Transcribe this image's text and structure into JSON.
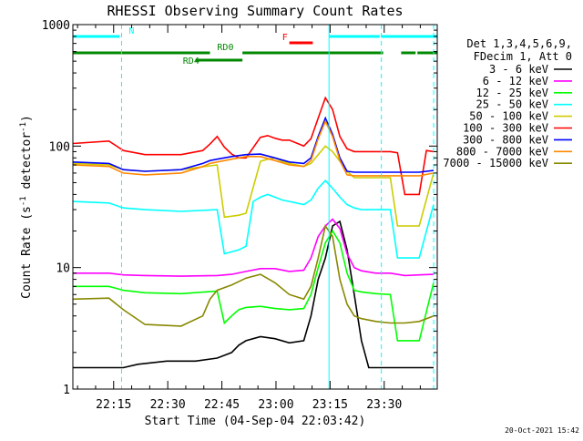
{
  "chart_data": {
    "type": "line",
    "title": "RHESSI Observing Summary Count Rates",
    "xlabel": "Start Time (04-Sep-04 22:03:42)",
    "ylabel_main": "Count Rate (s",
    "ylabel_sup1": "-1",
    "ylabel_mid": " detector",
    "ylabel_sup2": "-1",
    "ylabel_end": ")",
    "yscale": "log",
    "ylim": [
      1,
      1000
    ],
    "xlim_minutes": [
      0,
      101
    ],
    "x_ticks": [
      {
        "m": 11.3,
        "label": "22:15"
      },
      {
        "m": 26.3,
        "label": "22:30"
      },
      {
        "m": 41.3,
        "label": "22:45"
      },
      {
        "m": 56.3,
        "label": "23:00"
      },
      {
        "m": 71.3,
        "label": "23:15"
      },
      {
        "m": 86.3,
        "label": "23:30"
      }
    ],
    "y_ticks": [
      {
        "v": 1,
        "label": "1"
      },
      {
        "v": 10,
        "label": "10"
      },
      {
        "v": 100,
        "label": "100"
      },
      {
        "v": 1000,
        "label": "1000"
      }
    ],
    "legend_header": [
      "Det 1,3,4,5,6,9,",
      "FDecim 1, Att 0"
    ],
    "series": [
      {
        "name": "3 - 6 keV",
        "color": "#000000",
        "x": [
          0,
          10,
          14,
          18,
          26,
          34,
          40,
          44,
          46,
          48,
          52,
          56,
          60,
          64,
          66,
          68,
          70,
          72,
          74,
          76,
          78,
          80,
          82,
          84,
          86,
          88,
          92,
          96,
          100
        ],
        "y": [
          1.5,
          1.5,
          1.5,
          1.6,
          1.7,
          1.7,
          1.8,
          2.0,
          2.3,
          2.5,
          2.7,
          2.6,
          2.4,
          2.5,
          4,
          8,
          12,
          22,
          24,
          14,
          6,
          2.5,
          1.5,
          1.5,
          1.5,
          1.5,
          1.5,
          1.5,
          1.5
        ]
      },
      {
        "name": "6 - 12 keV",
        "color": "#ff00ff",
        "x": [
          0,
          10,
          14,
          20,
          30,
          40,
          44,
          48,
          52,
          56,
          60,
          64,
          66,
          68,
          70,
          72,
          74,
          76,
          78,
          80,
          84,
          88,
          92,
          96,
          100
        ],
        "y": [
          9,
          9,
          8.7,
          8.6,
          8.5,
          8.6,
          8.8,
          9.3,
          9.8,
          9.8,
          9.3,
          9.5,
          12,
          18,
          22,
          25,
          21,
          13,
          10,
          9.4,
          9,
          9,
          8.6,
          8.7,
          8.8
        ]
      },
      {
        "name": "12 - 25 keV",
        "color": "#00ff00",
        "x": [
          0,
          10,
          14,
          20,
          30,
          40,
          42,
          44,
          46,
          48,
          52,
          56,
          60,
          64,
          66,
          68,
          70,
          72,
          74,
          76,
          78,
          80,
          84,
          88,
          90,
          92,
          96,
          100
        ],
        "y": [
          7,
          7,
          6.5,
          6.2,
          6.1,
          6.4,
          3.5,
          4.0,
          4.5,
          4.7,
          4.8,
          4.6,
          4.5,
          4.6,
          6,
          10,
          16,
          20,
          16,
          9,
          6.5,
          6.3,
          6.1,
          6.0,
          2.5,
          2.5,
          2.5,
          7.5
        ]
      },
      {
        "name": "25 - 50 keV",
        "color": "#00ffff",
        "x": [
          0,
          10,
          14,
          20,
          30,
          40,
          42,
          46,
          48,
          50,
          52,
          54,
          56,
          58,
          60,
          62,
          64,
          66,
          68,
          70,
          72,
          74,
          76,
          78,
          80,
          84,
          88,
          90,
          92,
          96,
          100
        ],
        "y": [
          35,
          34,
          31,
          30,
          29,
          30,
          13,
          14,
          15,
          35,
          38,
          40,
          38,
          36,
          35,
          34,
          33,
          36,
          45,
          52,
          45,
          38,
          33,
          31,
          30,
          30,
          30,
          12,
          12,
          12,
          33
        ]
      },
      {
        "name": "50 - 100 keV",
        "color": "#cccc00",
        "x": [
          0,
          10,
          14,
          20,
          30,
          40,
          42,
          46,
          48,
          52,
          54,
          56,
          58,
          60,
          62,
          64,
          66,
          68,
          70,
          72,
          74,
          76,
          78,
          80,
          84,
          88,
          90,
          92,
          96,
          100
        ],
        "y": [
          72,
          70,
          64,
          62,
          64,
          70,
          26,
          27,
          28,
          75,
          78,
          80,
          75,
          72,
          70,
          68,
          72,
          85,
          100,
          90,
          75,
          62,
          55,
          55,
          55,
          55,
          22,
          22,
          22,
          60
        ]
      },
      {
        "name": "100 - 300 keV",
        "color": "#ff0000",
        "x": [
          0,
          10,
          14,
          20,
          30,
          36,
          38,
          40,
          42,
          44,
          46,
          48,
          52,
          54,
          56,
          58,
          60,
          62,
          64,
          66,
          68,
          70,
          72,
          74,
          76,
          78,
          80,
          84,
          88,
          90,
          92,
          96,
          98,
          100
        ],
        "y": [
          105,
          110,
          92,
          85,
          85,
          92,
          104,
          120,
          98,
          86,
          80,
          80,
          118,
          122,
          116,
          112,
          112,
          106,
          100,
          115,
          170,
          250,
          200,
          120,
          95,
          90,
          90,
          90,
          90,
          88,
          40,
          40,
          92,
          90
        ]
      },
      {
        "name": "300 - 800 keV",
        "color": "#0000ff",
        "x": [
          0,
          10,
          14,
          20,
          30,
          36,
          38,
          40,
          44,
          48,
          52,
          56,
          60,
          64,
          66,
          68,
          70,
          72,
          74,
          76,
          78,
          80,
          84,
          88,
          92,
          96,
          100
        ],
        "y": [
          74,
          72,
          64,
          62,
          64,
          72,
          76,
          78,
          82,
          85,
          86,
          80,
          74,
          72,
          80,
          120,
          170,
          125,
          80,
          62,
          61,
          61,
          61,
          61,
          61,
          61,
          63
        ]
      },
      {
        "name": "800 - 7000 keV",
        "color": "#ff8800",
        "x": [
          0,
          10,
          14,
          20,
          30,
          36,
          38,
          40,
          44,
          48,
          52,
          56,
          60,
          64,
          66,
          68,
          70,
          72,
          74,
          76,
          78,
          80,
          84,
          88,
          92,
          96,
          100
        ],
        "y": [
          70,
          68,
          60,
          58,
          60,
          68,
          72,
          74,
          78,
          82,
          82,
          76,
          70,
          68,
          76,
          115,
          160,
          120,
          76,
          58,
          57,
          57,
          57,
          57,
          57,
          57,
          60
        ]
      },
      {
        "name": "7000 - 15000 keV",
        "color": "#888800",
        "x": [
          0,
          10,
          14,
          20,
          30,
          36,
          38,
          40,
          44,
          48,
          52,
          56,
          60,
          64,
          66,
          68,
          70,
          72,
          74,
          76,
          78,
          80,
          84,
          88,
          92,
          96,
          100
        ],
        "y": [
          5.5,
          5.6,
          4.5,
          3.4,
          3.3,
          4.0,
          5.5,
          6.5,
          7.2,
          8.2,
          8.8,
          7.5,
          6.0,
          5.5,
          7.0,
          12,
          22,
          18,
          8,
          5,
          4,
          3.8,
          3.6,
          3.5,
          3.5,
          3.6,
          4.0
        ]
      }
    ],
    "state_bars": [
      {
        "label": "N",
        "label_at": 15.5,
        "color": "#00ffff",
        "level": "top",
        "segments": [
          [
            0,
            13
          ],
          [
            71,
            85
          ],
          [
            85.5,
            101
          ]
        ]
      },
      {
        "label": "F",
        "label_at": 58,
        "color": "#ff0000",
        "level": "flare",
        "segments": [
          [
            60,
            66.5
          ]
        ]
      },
      {
        "label": "RD0",
        "label_at": 40,
        "color": "#008800",
        "level": "upper",
        "segments": [
          [
            0,
            38
          ],
          [
            47,
            86
          ],
          [
            91,
            95
          ],
          [
            95.5,
            101
          ]
        ]
      },
      {
        "label": "RD4",
        "label_at": 30.5,
        "color": "#008800",
        "level": "lower",
        "segments": [
          [
            34,
            47
          ]
        ]
      }
    ],
    "vlines": [
      {
        "m": 13.5,
        "style": "dashed",
        "color": "#00ffff"
      },
      {
        "m": 71,
        "style": "solid",
        "color": "#00ffff"
      },
      {
        "m": 85.5,
        "style": "dashed",
        "color": "#00ffff"
      },
      {
        "m": 100,
        "style": "dashed",
        "color": "#00ffff"
      },
      {
        "m": 101,
        "style": "solid",
        "color": "#00ffff"
      }
    ],
    "footer": "20-Oct-2021 15:42"
  }
}
